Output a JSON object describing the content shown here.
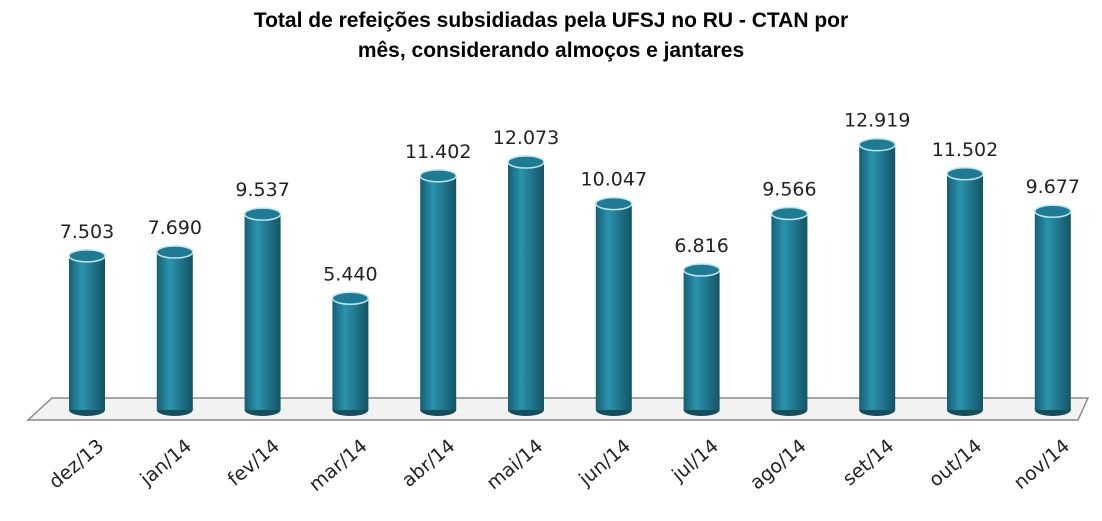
{
  "chart_data": {
    "type": "bar",
    "title": "Total de refeições subsidiadas pela UFSJ no RU - CTAN por mês, considerando almoços e jantares",
    "categories": [
      "dez/13",
      "jan/14",
      "fev/14",
      "mar/14",
      "abr/14",
      "mai/14",
      "jun/14",
      "jul/14",
      "ago/14",
      "set/14",
      "out/14",
      "nov/14"
    ],
    "values": [
      7503,
      7690,
      9537,
      5440,
      11402,
      12073,
      10047,
      6816,
      9566,
      12919,
      11502,
      9677
    ],
    "value_labels": [
      "7.503",
      "7.690",
      "9.537",
      "5.440",
      "11.402",
      "12.073",
      "10.047",
      "6.816",
      "9.566",
      "12.919",
      "11.502",
      "9.677"
    ],
    "color": "#1f7b93",
    "ylim": [
      0,
      13000
    ]
  }
}
